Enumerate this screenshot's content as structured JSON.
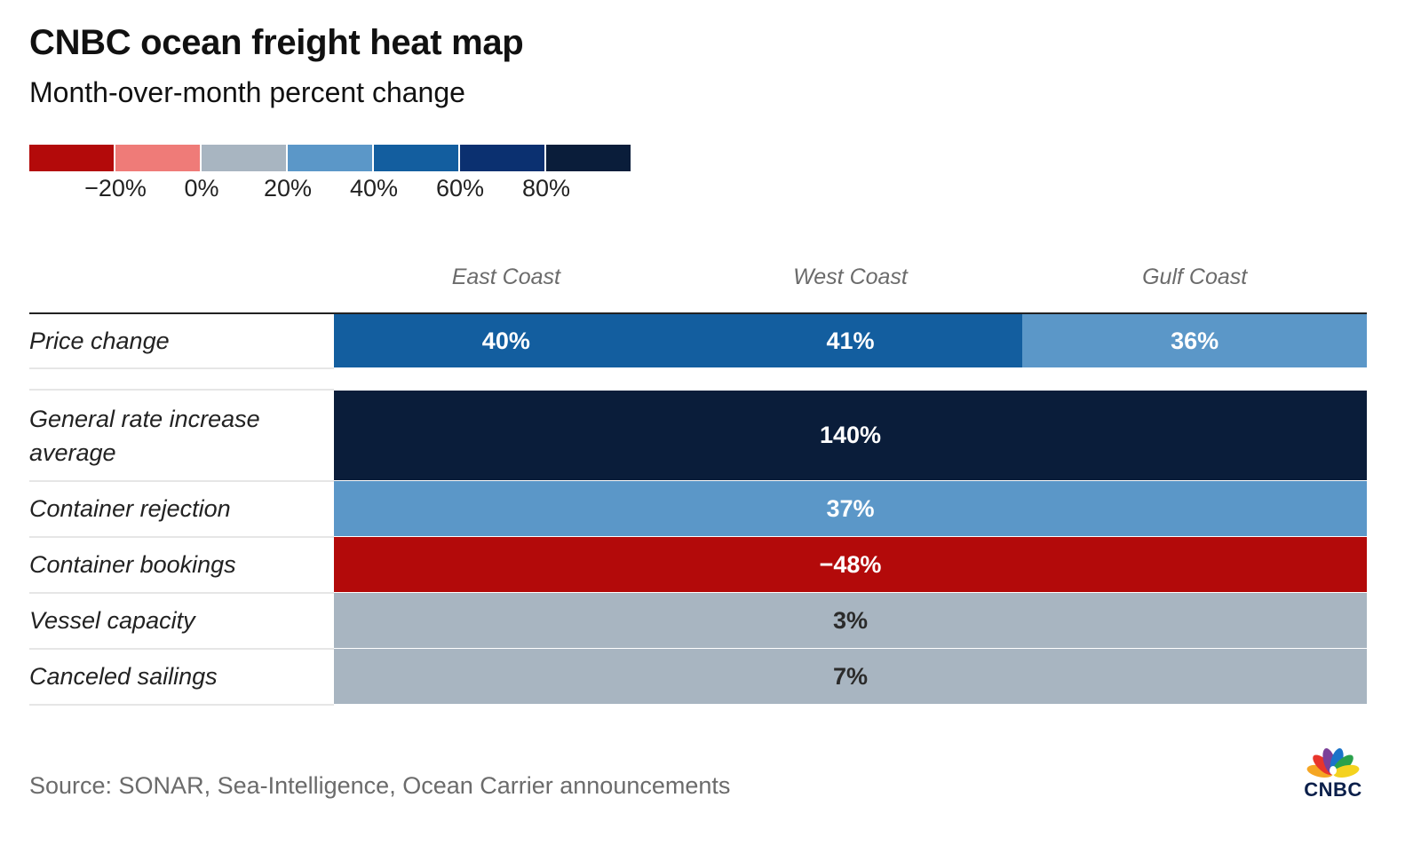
{
  "chart_data": {
    "type": "heatmap",
    "title": "CNBC ocean freight heat map",
    "subtitle": "Month-over-month percent change",
    "legend": {
      "colors": [
        "#b30a0a",
        "#ef7b78",
        "#a8b5c1",
        "#5b97c8",
        "#135e9f",
        "#0b3070",
        "#0a1d3a"
      ],
      "tick_labels": [
        "−20%",
        "0%",
        "20%",
        "40%",
        "60%",
        "80%"
      ]
    },
    "columns": [
      "East Coast",
      "West Coast",
      "Gulf Coast"
    ],
    "rows": [
      {
        "label": "Price change",
        "cells": [
          {
            "text": "40%",
            "value": 40,
            "color": "#135e9f",
            "text_color": "#ffffff",
            "span": 1
          },
          {
            "text": "41%",
            "value": 41,
            "color": "#135e9f",
            "text_color": "#ffffff",
            "span": 1
          },
          {
            "text": "36%",
            "value": 36,
            "color": "#5b97c8",
            "text_color": "#ffffff",
            "span": 1
          }
        ]
      },
      {
        "label": "General rate increase average",
        "cells": [
          {
            "text": "140%",
            "value": 140,
            "color": "#0a1d3a",
            "text_color": "#ffffff",
            "span": 3
          }
        ]
      },
      {
        "label": "Container rejection",
        "cells": [
          {
            "text": "37%",
            "value": 37,
            "color": "#5b97c8",
            "text_color": "#ffffff",
            "span": 3
          }
        ]
      },
      {
        "label": "Container bookings",
        "cells": [
          {
            "text": "−48%",
            "value": -48,
            "color": "#b30a0a",
            "text_color": "#ffffff",
            "span": 3
          }
        ]
      },
      {
        "label": "Vessel capacity",
        "cells": [
          {
            "text": "3%",
            "value": 3,
            "color": "#a8b5c1",
            "text_color": "#2b2b2b",
            "span": 3
          }
        ]
      },
      {
        "label": "Canceled sailings",
        "cells": [
          {
            "text": "7%",
            "value": 7,
            "color": "#a8b5c1",
            "text_color": "#2b2b2b",
            "span": 3
          }
        ]
      }
    ]
  },
  "source": "Source: SONAR, Sea-Intelligence, Ocean Carrier announcements",
  "logo": {
    "text": "CNBC",
    "icon": "nbc-peacock-icon"
  }
}
